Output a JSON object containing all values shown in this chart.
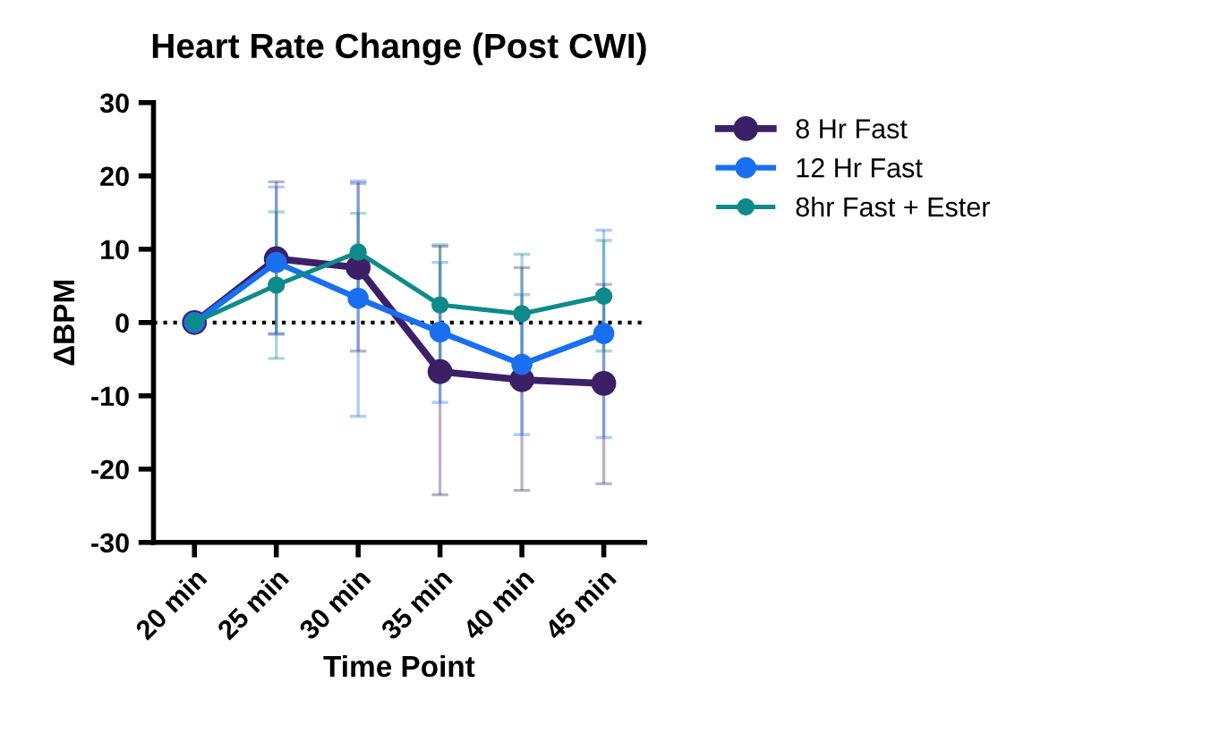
{
  "chart_data": {
    "type": "line",
    "title": "Heart Rate Change (Post CWI)",
    "xlabel": "Time Point",
    "ylabel": "ΔBPM",
    "categories": [
      "20 min",
      "25 min",
      "30 min",
      "35 min",
      "40 min",
      "45 min"
    ],
    "series": [
      {
        "name": "8 Hr Fast",
        "color": "#3b2068",
        "values": [
          0,
          8.7,
          7.5,
          -6.7,
          -7.8,
          -8.3
        ],
        "errors": [
          null,
          [
            -1.6,
            19.2
          ],
          [
            -3.9,
            19.0
          ],
          [
            -23.5,
            10.4
          ],
          [
            -22.9,
            7.5
          ],
          [
            -22.0,
            5.2
          ]
        ]
      },
      {
        "name": "12 Hr Fast",
        "color": "#1a6ff0",
        "values": [
          0,
          8.2,
          3.3,
          -1.3,
          -5.7,
          -1.5
        ],
        "errors": [
          null,
          [
            -1.5,
            18.5
          ],
          [
            -12.8,
            19.3
          ],
          [
            -10.9,
            8.2
          ],
          [
            -15.3,
            3.8
          ],
          [
            -15.7,
            12.6
          ]
        ]
      },
      {
        "name": "8hr Fast + Ester",
        "color": "#0e8a8a",
        "values": [
          0,
          5.1,
          9.6,
          2.4,
          1.2,
          3.6
        ],
        "errors": [
          null,
          [
            -4.9,
            15.1
          ],
          [
            4.3,
            14.9
          ],
          [
            -5.7,
            10.6
          ],
          [
            -6.9,
            9.3
          ],
          [
            -3.9,
            11.2
          ]
        ]
      }
    ],
    "ylim": [
      -30,
      30
    ],
    "yticks": [
      -30,
      -20,
      -10,
      0,
      10,
      20,
      30
    ],
    "grid": false,
    "legend": "top right",
    "marker": "circle",
    "line_style": "solid",
    "ref_lines": [
      {
        "axis": "y",
        "value": 0,
        "color": "#000000",
        "line_style": "dotted"
      }
    ]
  }
}
